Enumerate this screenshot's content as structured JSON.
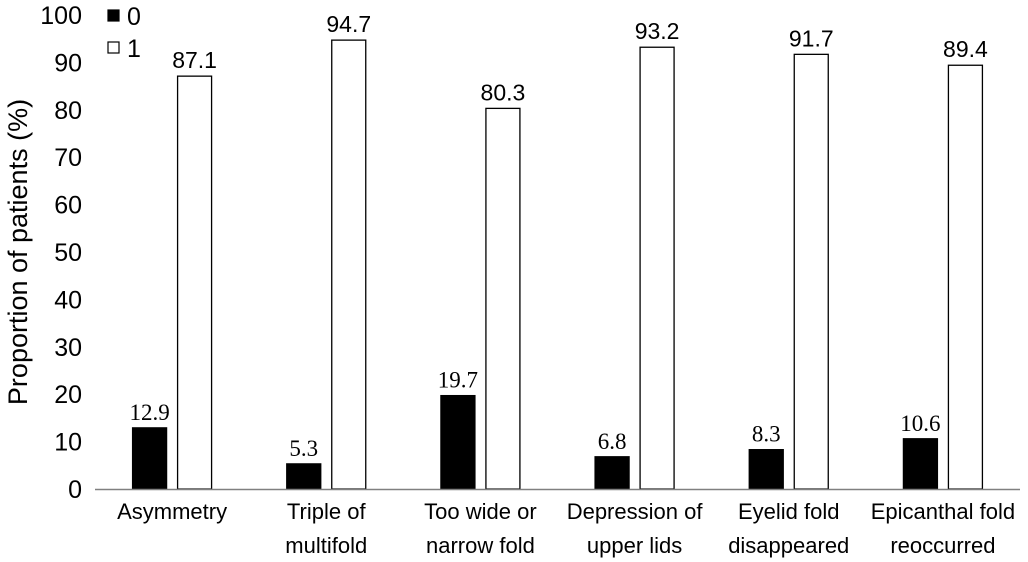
{
  "chart_data": {
    "type": "bar",
    "title": "",
    "xlabel": "",
    "ylabel": "Proportion of patients (%)",
    "ylim": [
      0,
      100
    ],
    "yticks": [
      "0",
      "10",
      "20",
      "30",
      "40",
      "50",
      "60",
      "70",
      "80",
      "90",
      "100"
    ],
    "categories": [
      [
        "Asymmetry"
      ],
      [
        "Triple of",
        "multifold"
      ],
      [
        "Too wide or",
        "narrow fold"
      ],
      [
        "Depression of",
        "upper lids"
      ],
      [
        "Eyelid fold",
        "disappeared"
      ],
      [
        "Epicanthal fold",
        "reoccurred"
      ]
    ],
    "series": [
      {
        "name": "0",
        "color": "#000000",
        "values": [
          12.9,
          5.3,
          19.7,
          6.8,
          8.3,
          10.6
        ],
        "labels": [
          "12.9",
          "5.3",
          "19.7",
          "6.8",
          "8.3",
          "10.6"
        ]
      },
      {
        "name": "1",
        "color": "#ffffff",
        "values": [
          87.1,
          94.7,
          80.3,
          93.2,
          91.7,
          89.4
        ],
        "labels": [
          "87.1",
          "94.7",
          "80.3",
          "93.2",
          "91.7",
          "89.4"
        ]
      }
    ],
    "legend": "top-left",
    "grid": false
  }
}
